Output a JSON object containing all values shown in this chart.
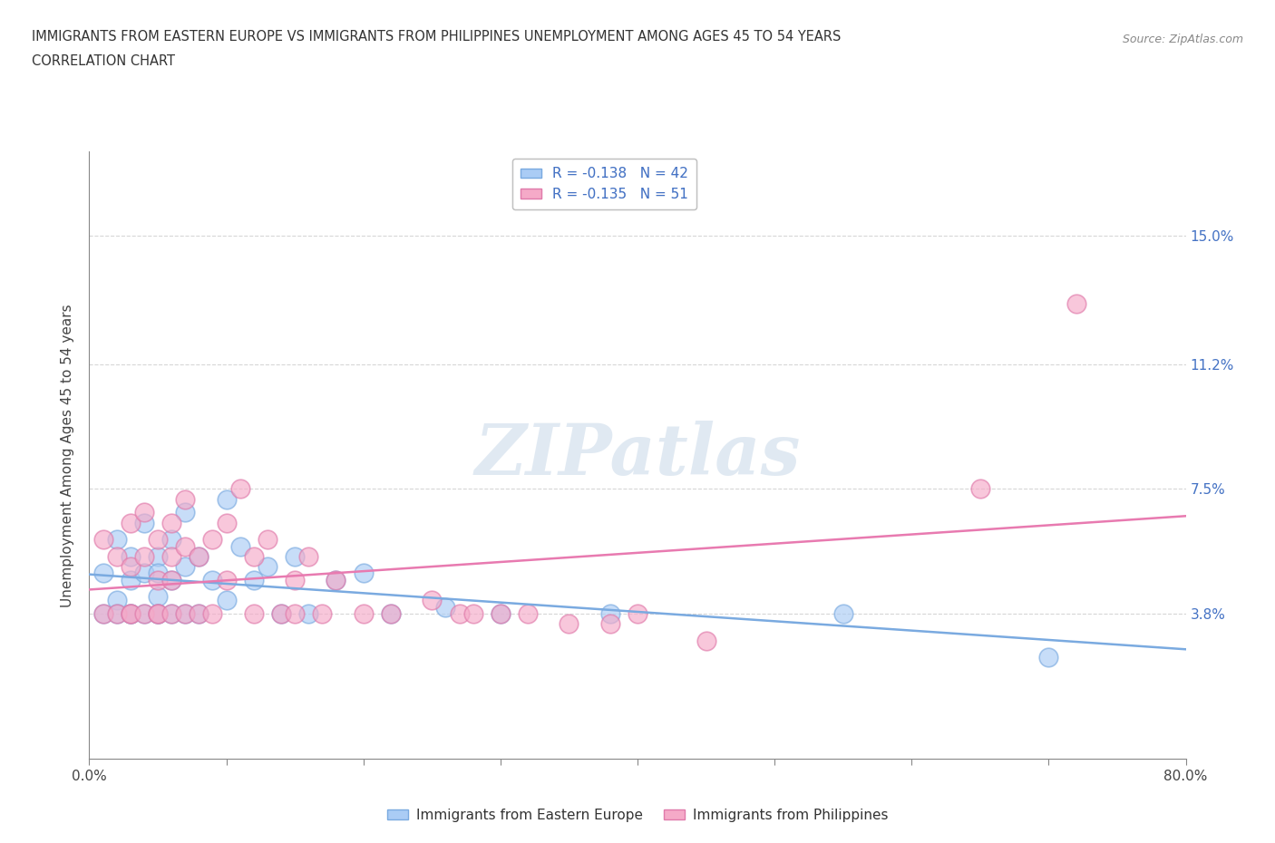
{
  "title_line1": "IMMIGRANTS FROM EASTERN EUROPE VS IMMIGRANTS FROM PHILIPPINES UNEMPLOYMENT AMONG AGES 45 TO 54 YEARS",
  "title_line2": "CORRELATION CHART",
  "source_text": "Source: ZipAtlas.com",
  "ylabel": "Unemployment Among Ages 45 to 54 years",
  "xlim": [
    0.0,
    0.8
  ],
  "ylim": [
    -0.005,
    0.175
  ],
  "ytick_positions": [
    0.038,
    0.075,
    0.112,
    0.15
  ],
  "yticklabels": [
    "3.8%",
    "7.5%",
    "11.2%",
    "15.0%"
  ],
  "r_eastern": -0.138,
  "n_eastern": 42,
  "r_philippines": -0.135,
  "n_philippines": 51,
  "color_eastern": "#aaccf5",
  "color_philippines": "#f5aac8",
  "edge_eastern": "#7aaae0",
  "edge_philippines": "#e07aaa",
  "trendline_eastern": "#7aaae0",
  "trendline_philippines": "#e87ab0",
  "legend_label_eastern": "Immigrants from Eastern Europe",
  "legend_label_philippines": "Immigrants from Philippines",
  "watermark": "ZIPatlas",
  "eastern_x": [
    0.01,
    0.01,
    0.02,
    0.02,
    0.02,
    0.03,
    0.03,
    0.03,
    0.03,
    0.04,
    0.04,
    0.04,
    0.05,
    0.05,
    0.05,
    0.05,
    0.05,
    0.06,
    0.06,
    0.06,
    0.07,
    0.07,
    0.07,
    0.08,
    0.08,
    0.09,
    0.1,
    0.1,
    0.11,
    0.12,
    0.13,
    0.14,
    0.15,
    0.16,
    0.18,
    0.2,
    0.22,
    0.26,
    0.3,
    0.38,
    0.55,
    0.7
  ],
  "eastern_y": [
    0.05,
    0.038,
    0.06,
    0.042,
    0.038,
    0.055,
    0.048,
    0.038,
    0.038,
    0.065,
    0.05,
    0.038,
    0.055,
    0.05,
    0.043,
    0.038,
    0.038,
    0.06,
    0.048,
    0.038,
    0.068,
    0.052,
    0.038,
    0.055,
    0.038,
    0.048,
    0.072,
    0.042,
    0.058,
    0.048,
    0.052,
    0.038,
    0.055,
    0.038,
    0.048,
    0.05,
    0.038,
    0.04,
    0.038,
    0.038,
    0.038,
    0.025
  ],
  "philippines_x": [
    0.01,
    0.01,
    0.02,
    0.02,
    0.03,
    0.03,
    0.03,
    0.03,
    0.04,
    0.04,
    0.04,
    0.05,
    0.05,
    0.05,
    0.05,
    0.06,
    0.06,
    0.06,
    0.06,
    0.07,
    0.07,
    0.07,
    0.08,
    0.08,
    0.09,
    0.09,
    0.1,
    0.1,
    0.11,
    0.12,
    0.12,
    0.13,
    0.14,
    0.15,
    0.15,
    0.16,
    0.17,
    0.18,
    0.2,
    0.22,
    0.25,
    0.27,
    0.28,
    0.3,
    0.32,
    0.35,
    0.38,
    0.4,
    0.45,
    0.65,
    0.72
  ],
  "philippines_y": [
    0.06,
    0.038,
    0.055,
    0.038,
    0.065,
    0.052,
    0.038,
    0.038,
    0.068,
    0.055,
    0.038,
    0.06,
    0.048,
    0.038,
    0.038,
    0.065,
    0.055,
    0.048,
    0.038,
    0.072,
    0.058,
    0.038,
    0.055,
    0.038,
    0.06,
    0.038,
    0.065,
    0.048,
    0.075,
    0.055,
    0.038,
    0.06,
    0.038,
    0.048,
    0.038,
    0.055,
    0.038,
    0.048,
    0.038,
    0.038,
    0.042,
    0.038,
    0.038,
    0.038,
    0.038,
    0.035,
    0.035,
    0.038,
    0.03,
    0.075,
    0.13
  ]
}
